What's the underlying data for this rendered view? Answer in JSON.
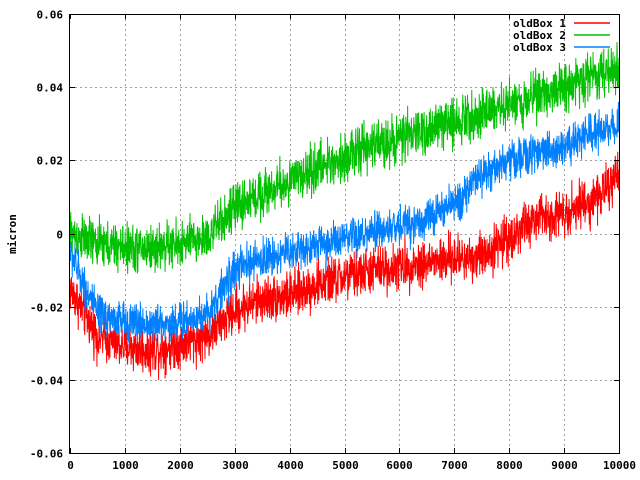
{
  "chart_data": {
    "type": "line",
    "xlabel": "",
    "ylabel": "micron",
    "xlim": [
      0,
      10000
    ],
    "ylim": [
      -0.06,
      0.06
    ],
    "x_ticks": [
      0,
      1000,
      2000,
      3000,
      4000,
      5000,
      6000,
      7000,
      8000,
      9000,
      10000
    ],
    "y_ticks": [
      -0.06,
      -0.04,
      -0.02,
      0,
      0.02,
      0.04,
      0.06
    ],
    "y_tick_labels": [
      "-0.06",
      "-0.04",
      "-0.02",
      "0",
      "0.02",
      "0.04",
      "0.06"
    ],
    "grid": true,
    "legend_position": "top-right",
    "series": [
      {
        "name": "oldBox 1",
        "color": "#ff0000",
        "x": [
          0,
          500,
          1000,
          1500,
          2000,
          2500,
          3000,
          3500,
          4000,
          4500,
          5000,
          5500,
          6000,
          6500,
          7000,
          7500,
          8000,
          8500,
          9000,
          9500,
          10000
        ],
        "values": [
          -0.015,
          -0.028,
          -0.031,
          -0.032,
          -0.03,
          -0.028,
          -0.021,
          -0.018,
          -0.017,
          -0.014,
          -0.012,
          -0.01,
          -0.009,
          -0.008,
          -0.007,
          -0.006,
          -0.001,
          0.004,
          0.006,
          0.009,
          0.015
        ],
        "noise": 0.006
      },
      {
        "name": "oldBox 2",
        "color": "#00c000",
        "x": [
          0,
          500,
          1000,
          1500,
          2000,
          2500,
          3000,
          3500,
          4000,
          4500,
          5000,
          5500,
          6000,
          6500,
          7000,
          7500,
          8000,
          8500,
          9000,
          9500,
          10000
        ],
        "values": [
          0.0,
          -0.003,
          -0.004,
          -0.004,
          -0.003,
          -0.001,
          0.007,
          0.011,
          0.014,
          0.018,
          0.021,
          0.024,
          0.026,
          0.028,
          0.031,
          0.033,
          0.035,
          0.038,
          0.04,
          0.043,
          0.045
        ],
        "noise": 0.006
      },
      {
        "name": "oldBox 3",
        "color": "#0080ff",
        "x": [
          0,
          500,
          1000,
          1500,
          2000,
          2500,
          3000,
          3500,
          4000,
          4500,
          5000,
          5500,
          6000,
          6500,
          7000,
          7500,
          8000,
          8500,
          9000,
          9500,
          10000
        ],
        "values": [
          -0.005,
          -0.022,
          -0.024,
          -0.025,
          -0.024,
          -0.022,
          -0.01,
          -0.007,
          -0.005,
          -0.003,
          -0.002,
          0.0,
          0.002,
          0.004,
          0.008,
          0.016,
          0.02,
          0.022,
          0.024,
          0.027,
          0.03
        ],
        "noise": 0.005
      }
    ]
  }
}
